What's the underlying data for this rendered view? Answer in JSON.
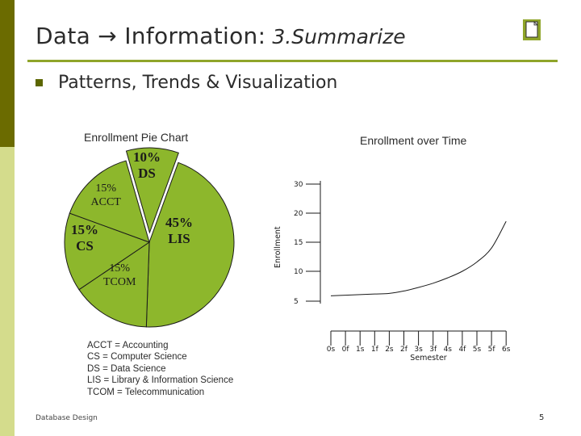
{
  "title": {
    "main": "Data → Information:",
    "italic": "3.Summarize"
  },
  "bullet_text": "Patterns, Trends & Visualization",
  "colors": {
    "accent_bar": "#6b6b00",
    "pale_bar": "#d4dc8c",
    "pie_fill": "#8db72c",
    "rule": "#8fa52a"
  },
  "icons": {
    "note": "note-icon"
  },
  "pie": {
    "title": "Enrollment Pie Chart",
    "chart_data": {
      "type": "pie",
      "slices": [
        {
          "label": "10%\nDS",
          "value": 10
        },
        {
          "label": "45%\nLIS",
          "value": 45
        },
        {
          "label": "15%\nTCOM",
          "value": 15
        },
        {
          "label": "15%\nCS",
          "value": 15
        },
        {
          "label": "15%\nACCT",
          "value": 15
        }
      ]
    },
    "legend": [
      "ACCT = Accounting",
      "CS = Computer Science",
      "DS = Data Science",
      "LIS = Library & Information Science",
      "TCOM = Telecommunication"
    ]
  },
  "line": {
    "title": "Enrollment over Time",
    "chart_data": {
      "type": "line",
      "ylabel": "Enrollment",
      "xlabel": "Semester",
      "yticks": [
        5,
        10,
        15,
        20,
        30
      ],
      "xticks": [
        "0s",
        "0f",
        "1s",
        "1f",
        "2s",
        "2f",
        "3s",
        "3f",
        "4s",
        "4f",
        "5s",
        "5f",
        "6s"
      ],
      "x": [
        "0s",
        "0f",
        "1s",
        "1f",
        "2s",
        "2f",
        "3s",
        "3f",
        "4s",
        "4f",
        "5s",
        "5f",
        "6s"
      ],
      "values": [
        5.9,
        6.0,
        6.1,
        6.2,
        6.3,
        6.7,
        7.3,
        8.0,
        8.9,
        10.0,
        11.6,
        14.0,
        18.6
      ]
    }
  },
  "footer": {
    "left": "Database Design",
    "page": "5"
  }
}
